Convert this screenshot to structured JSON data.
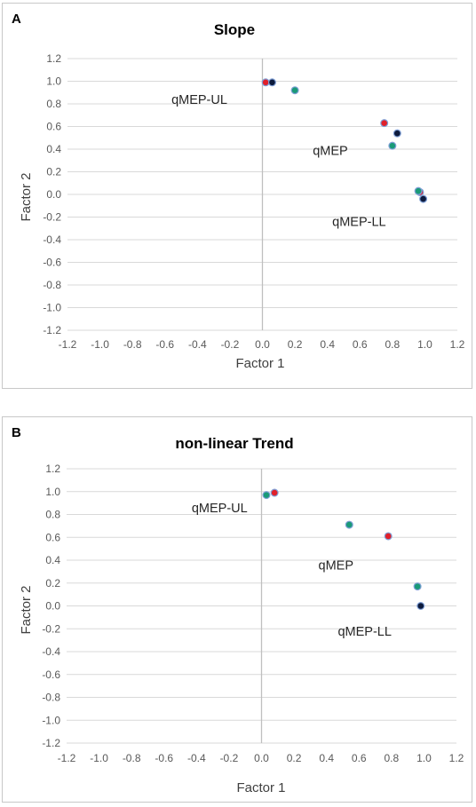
{
  "chart_data": [
    {
      "panel": "A",
      "type": "scatter",
      "title": "Slope",
      "xlabel": "Factor 1",
      "ylabel": "Factor 2",
      "xlim": [
        -1.2,
        1.2
      ],
      "ylim": [
        -1.2,
        1.2
      ],
      "ticks": [
        "-1.2",
        "-1.0",
        "-0.8",
        "-0.6",
        "-0.4",
        "-0.2",
        "0.0",
        "0.2",
        "0.4",
        "0.6",
        "0.8",
        "1.0",
        "1.2"
      ],
      "grid": "horizontal",
      "annotations": [
        {
          "text": "qMEP-UL",
          "x": -0.56,
          "y": 0.8
        },
        {
          "text": "qMEP",
          "x": 0.31,
          "y": 0.35
        },
        {
          "text": "qMEP-LL",
          "x": 0.43,
          "y": -0.28
        }
      ],
      "series": [
        {
          "color": "#e0202a",
          "points": [
            [
              0.02,
              0.99
            ],
            [
              0.75,
              0.63
            ],
            [
              0.97,
              0.02
            ]
          ]
        },
        {
          "color": "#0d1b3d",
          "points": [
            [
              0.06,
              0.99
            ],
            [
              0.83,
              0.54
            ],
            [
              0.99,
              -0.04
            ]
          ]
        },
        {
          "color": "#1a9a78",
          "points": [
            [
              0.2,
              0.92
            ],
            [
              0.8,
              0.43
            ],
            [
              0.96,
              0.03
            ]
          ]
        }
      ]
    },
    {
      "panel": "B",
      "type": "scatter",
      "title": "non-linear Trend",
      "xlabel": "Factor 1",
      "ylabel": "Factor 2",
      "xlim": [
        -1.2,
        1.2
      ],
      "ylim": [
        -1.2,
        1.2
      ],
      "ticks": [
        "-1.2",
        "-1.0",
        "-0.8",
        "-0.6",
        "-0.4",
        "-0.2",
        "0.0",
        "0.2",
        "0.4",
        "0.6",
        "0.8",
        "1.0",
        "1.2"
      ],
      "grid": "horizontal",
      "annotations": [
        {
          "text": "qMEP-UL",
          "x": -0.43,
          "y": 0.82
        },
        {
          "text": "qMEP",
          "x": 0.35,
          "y": 0.32
        },
        {
          "text": "qMEP-LL",
          "x": 0.47,
          "y": -0.26
        }
      ],
      "series": [
        {
          "color": "#e0202a",
          "points": [
            [
              0.08,
              0.99
            ],
            [
              0.78,
              0.61
            ]
          ]
        },
        {
          "color": "#0d1b3d",
          "points": [
            [
              0.98,
              0.0
            ]
          ]
        },
        {
          "color": "#1a9a78",
          "points": [
            [
              0.03,
              0.97
            ],
            [
              0.54,
              0.71
            ],
            [
              0.96,
              0.17
            ]
          ]
        }
      ]
    }
  ]
}
